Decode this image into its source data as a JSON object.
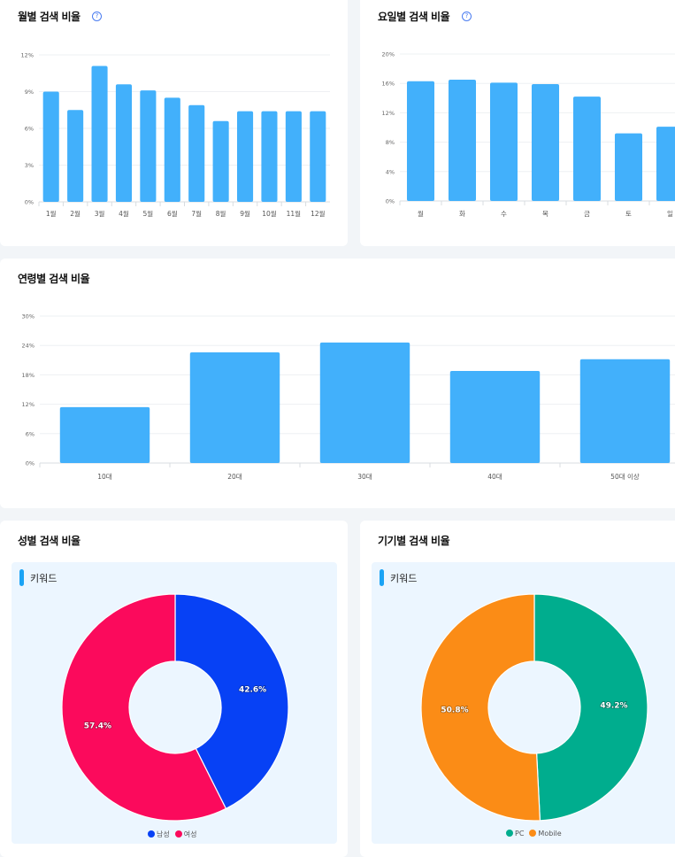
{
  "chart_data": [
    {
      "type": "bar",
      "title": "월별 검색 비율",
      "categories": [
        "1월",
        "2월",
        "3월",
        "4월",
        "5월",
        "6월",
        "7월",
        "8월",
        "9월",
        "10월",
        "11월",
        "12월"
      ],
      "values": [
        9.0,
        7.5,
        11.1,
        9.6,
        9.1,
        8.5,
        7.9,
        6.6,
        7.4,
        7.4,
        7.4,
        7.4
      ],
      "ylim": [
        0,
        12
      ],
      "yticks": [
        "0%",
        "3%",
        "6%",
        "9%",
        "12%"
      ],
      "grid": true,
      "color": "#42b0fb"
    },
    {
      "type": "bar",
      "title": "요일별 검색 비율",
      "categories": [
        "월",
        "화",
        "수",
        "목",
        "금",
        "토",
        "일"
      ],
      "values": [
        16.3,
        16.5,
        16.1,
        15.9,
        14.2,
        9.2,
        10.1
      ],
      "ylim": [
        0,
        20
      ],
      "yticks": [
        "0%",
        "4%",
        "8%",
        "12%",
        "16%",
        "20%"
      ],
      "grid": true,
      "color": "#42b0fb"
    },
    {
      "type": "bar",
      "title": "연령별 검색 비율",
      "categories": [
        "10대",
        "20대",
        "30대",
        "40대",
        "50대 이상"
      ],
      "values": [
        11.4,
        22.6,
        24.6,
        18.8,
        21.2
      ],
      "ylim": [
        0,
        30
      ],
      "yticks": [
        "0%",
        "6%",
        "12%",
        "18%",
        "24%",
        "30%"
      ],
      "grid": true,
      "color": "#42b0fb"
    },
    {
      "type": "pie",
      "title": "성별 검색 비율",
      "panel_label": "키워드",
      "donut": true,
      "slices": [
        {
          "name": "남성",
          "value": 42.6,
          "label": "42.6%",
          "color": "#0741f5"
        },
        {
          "name": "여성",
          "value": 57.4,
          "label": "57.4%",
          "color": "#fb0a5c"
        }
      ],
      "legend": "bottom"
    },
    {
      "type": "pie",
      "title": "기기별 검색 비율",
      "panel_label": "키워드",
      "donut": true,
      "slices": [
        {
          "name": "PC",
          "value": 49.2,
          "label": "49.2%",
          "color": "#00ad8e"
        },
        {
          "name": "Mobile",
          "value": 50.8,
          "label": "50.8%",
          "color": "#fb8c16"
        }
      ],
      "legend": "bottom"
    }
  ]
}
